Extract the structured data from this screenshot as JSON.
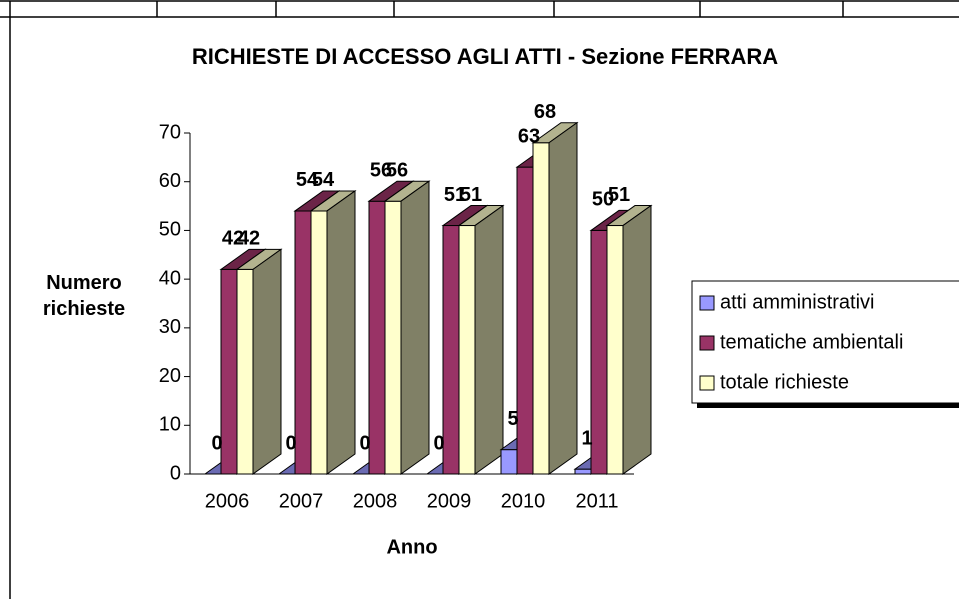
{
  "chart_data": {
    "type": "bar3d",
    "title": "RICHIESTE DI ACCESSO AGLI ATTI - Sezione FERRARA",
    "x_label": "Anno",
    "y_label": "Numero richieste",
    "categories": [
      "2006",
      "2007",
      "2008",
      "2009",
      "2010",
      "2011"
    ],
    "series": [
      {
        "name": "atti amministrativi",
        "color": "#9999ff",
        "values": [
          0,
          0,
          0,
          0,
          5,
          1
        ]
      },
      {
        "name": "tematiche ambientali",
        "color": "#993366",
        "values": [
          42,
          54,
          56,
          51,
          63,
          50
        ]
      },
      {
        "name": "totale richieste",
        "color": "#ffffcc",
        "values": [
          42,
          54,
          56,
          51,
          68,
          51
        ]
      }
    ],
    "ylim": [
      0,
      70
    ],
    "yticks": [
      0,
      10,
      20,
      30,
      40,
      50,
      60,
      70
    ],
    "legend": "right"
  }
}
